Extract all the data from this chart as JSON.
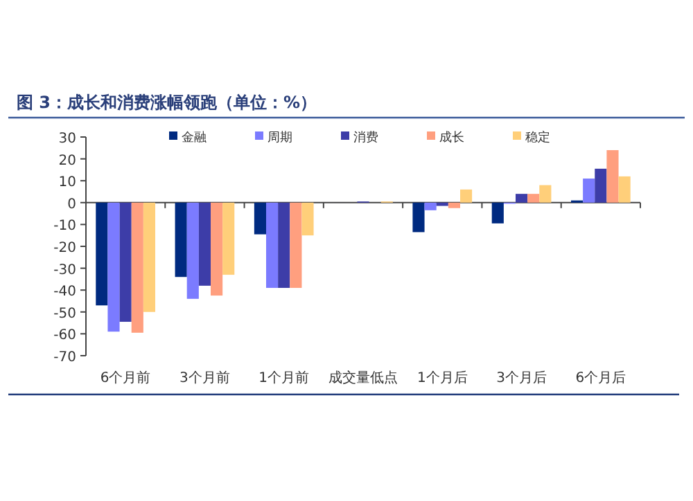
{
  "chart_data": {
    "type": "bar",
    "title": "图 3：成长和消费涨幅领跑（单位：%）",
    "categories": [
      "6个月前",
      "3个月前",
      "1个月前",
      "成交量低点",
      "1个月后",
      "3个月后",
      "6个月后"
    ],
    "series": [
      {
        "name": "金融",
        "color": "#002a80",
        "values": [
          -47,
          -34,
          -14.5,
          0,
          -13.5,
          -9.5,
          1
        ]
      },
      {
        "name": "周期",
        "color": "#7b7bff",
        "values": [
          -59,
          -44,
          -39,
          0,
          -3.5,
          -0.5,
          11
        ]
      },
      {
        "name": "消费",
        "color": "#3d3da8",
        "values": [
          -54.5,
          -38,
          -39,
          0.5,
          -1.5,
          4,
          15.5
        ]
      },
      {
        "name": "成长",
        "color": "#ff9f7f",
        "values": [
          -59.5,
          -42.5,
          -39,
          0,
          -2.5,
          4,
          24
        ]
      },
      {
        "name": "稳定",
        "color": "#ffcf7a",
        "values": [
          -50,
          -33,
          -15,
          0.5,
          6,
          8,
          12
        ]
      }
    ],
    "ylim": [
      -70,
      30
    ],
    "yticks": [
      -70,
      -60,
      -50,
      -40,
      -30,
      -20,
      -10,
      0,
      10,
      20,
      30
    ],
    "legend": "top"
  }
}
